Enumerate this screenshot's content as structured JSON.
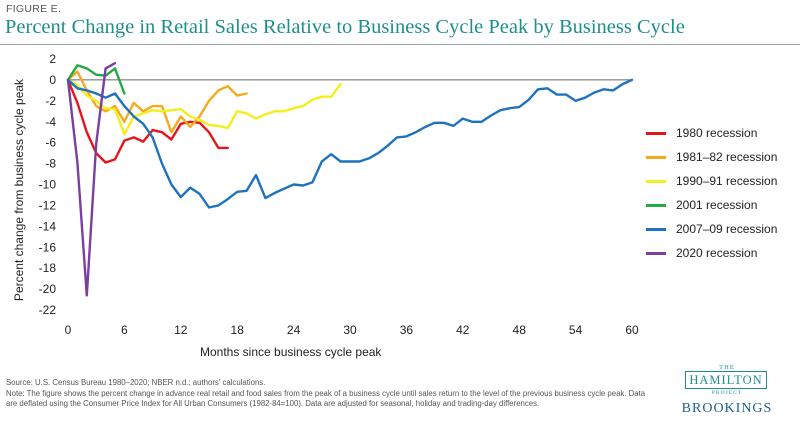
{
  "figure_label": "FIGURE E.",
  "brand": {
    "line1": "THE",
    "line2": "HAMILTON",
    "line3": "PROJECT",
    "line4": "BROOKINGS"
  },
  "source": "Source: U.S. Census Bureau 1980–2020; NBER n.d.; authors' calculations.",
  "note": "Note: The figure shows the percent change in advance real retail and food sales from the peak of a business cycle until sales return to the level of the previous business cycle peak. Data are deflated using the Consumer Price Index for All Urban Consumers (1982-84=100). Data are adjusted for seasonal, holiday and trading-day differences.",
  "chart_data": {
    "type": "line",
    "title": "Percent Change in Retail Sales Relative to Business Cycle Peak by Business Cycle",
    "xlabel": "Months since business cycle peak",
    "ylabel": "Percent change from business cycle peak",
    "xlim": [
      0,
      60
    ],
    "ylim": [
      -22,
      2
    ],
    "x_ticks": [
      0,
      6,
      12,
      18,
      24,
      30,
      36,
      42,
      48,
      54,
      60
    ],
    "y_ticks": [
      2,
      0,
      -2,
      -4,
      -6,
      -8,
      -10,
      -12,
      -14,
      -16,
      -18,
      -20,
      -22
    ],
    "grid": false,
    "legend_position": "right",
    "series": [
      {
        "name": "1980 recession",
        "color": "#e8131c",
        "x": [
          0,
          1,
          2,
          3,
          4,
          5,
          6,
          7,
          8,
          9,
          10,
          11,
          12,
          13,
          14,
          15,
          16,
          17
        ],
        "y": [
          0,
          -2.2,
          -5,
          -7,
          -7.9,
          -7.6,
          -5.8,
          -5.5,
          -5.9,
          -4.8,
          -5,
          -5.7,
          -4.2,
          -4,
          -4.1,
          -5,
          -6.5,
          -6.5
        ]
      },
      {
        "name": "1981–82 recession",
        "color": "#f5a91e",
        "x": [
          0,
          1,
          2,
          3,
          4,
          5,
          6,
          7,
          8,
          9,
          10,
          11,
          12,
          13,
          14,
          15,
          16,
          17,
          18,
          19
        ],
        "y": [
          0,
          0.8,
          -1,
          -2.5,
          -3,
          -2.5,
          -4,
          -2.2,
          -3,
          -2.5,
          -2.5,
          -5,
          -3.5,
          -4.5,
          -3.5,
          -2,
          -1,
          -0.6,
          -1.5,
          -1.3
        ]
      },
      {
        "name": "1990–91 recession",
        "color": "#f5ee1e",
        "x": [
          0,
          1,
          2,
          3,
          4,
          5,
          6,
          7,
          8,
          9,
          10,
          11,
          12,
          13,
          14,
          15,
          16,
          17,
          18,
          19,
          20,
          21,
          22,
          23,
          24,
          25,
          26,
          27,
          28,
          29
        ],
        "y": [
          0,
          -0.5,
          -1.5,
          -2,
          -2.7,
          -2.8,
          -5.2,
          -3.5,
          -3.2,
          -2.9,
          -3,
          -2.9,
          -2.8,
          -3.5,
          -3.8,
          -4.3,
          -4.4,
          -4.6,
          -3,
          -3.2,
          -3.7,
          -3.3,
          -3,
          -3,
          -2.7,
          -2.5,
          -1.9,
          -1.6,
          -1.6,
          -0.4
        ]
      },
      {
        "name": "2001 recession",
        "color": "#24a944",
        "x": [
          0,
          1,
          2,
          3,
          4,
          5,
          6
        ],
        "y": [
          0,
          1.4,
          1.1,
          0.5,
          0.4,
          1.1,
          -1.3
        ]
      },
      {
        "name": "2007–09 recession",
        "color": "#1e73be",
        "x": [
          0,
          1,
          2,
          3,
          4,
          5,
          6,
          7,
          8,
          9,
          10,
          11,
          12,
          13,
          14,
          15,
          16,
          17,
          18,
          19,
          20,
          21,
          22,
          23,
          24,
          25,
          26,
          27,
          28,
          29,
          30,
          31,
          32,
          33,
          34,
          35,
          36,
          37,
          38,
          39,
          40,
          41,
          42,
          43,
          44,
          45,
          46,
          47,
          48,
          49,
          50,
          51,
          52,
          53,
          54,
          55,
          56,
          57,
          58,
          59,
          60
        ],
        "y": [
          0,
          -0.8,
          -1,
          -1.3,
          -1.7,
          -1.3,
          -2.5,
          -3.5,
          -4.2,
          -5.5,
          -8,
          -10,
          -11.2,
          -10.3,
          -10.9,
          -12.2,
          -12,
          -11.4,
          -10.7,
          -10.6,
          -9.1,
          -11.3,
          -10.8,
          -10.4,
          -10,
          -10.1,
          -9.8,
          -7.8,
          -7.1,
          -7.8,
          -7.8,
          -7.8,
          -7.5,
          -7,
          -6.3,
          -5.5,
          -5.4,
          -5,
          -4.5,
          -4.1,
          -4.1,
          -4.4,
          -3.7,
          -4,
          -4,
          -3.4,
          -2.9,
          -2.7,
          -2.6,
          -1.9,
          -0.9,
          -0.8,
          -1.4,
          -1.4,
          -2,
          -1.7,
          -1.2,
          -0.9,
          -1,
          -0.4,
          0
        ]
      },
      {
        "name": "2020 recession",
        "color": "#7b3fa0",
        "x": [
          0,
          1,
          2,
          3,
          4,
          5
        ],
        "y": [
          0,
          -7.9,
          -20.6,
          -6.1,
          1.1,
          1.6
        ]
      }
    ]
  }
}
